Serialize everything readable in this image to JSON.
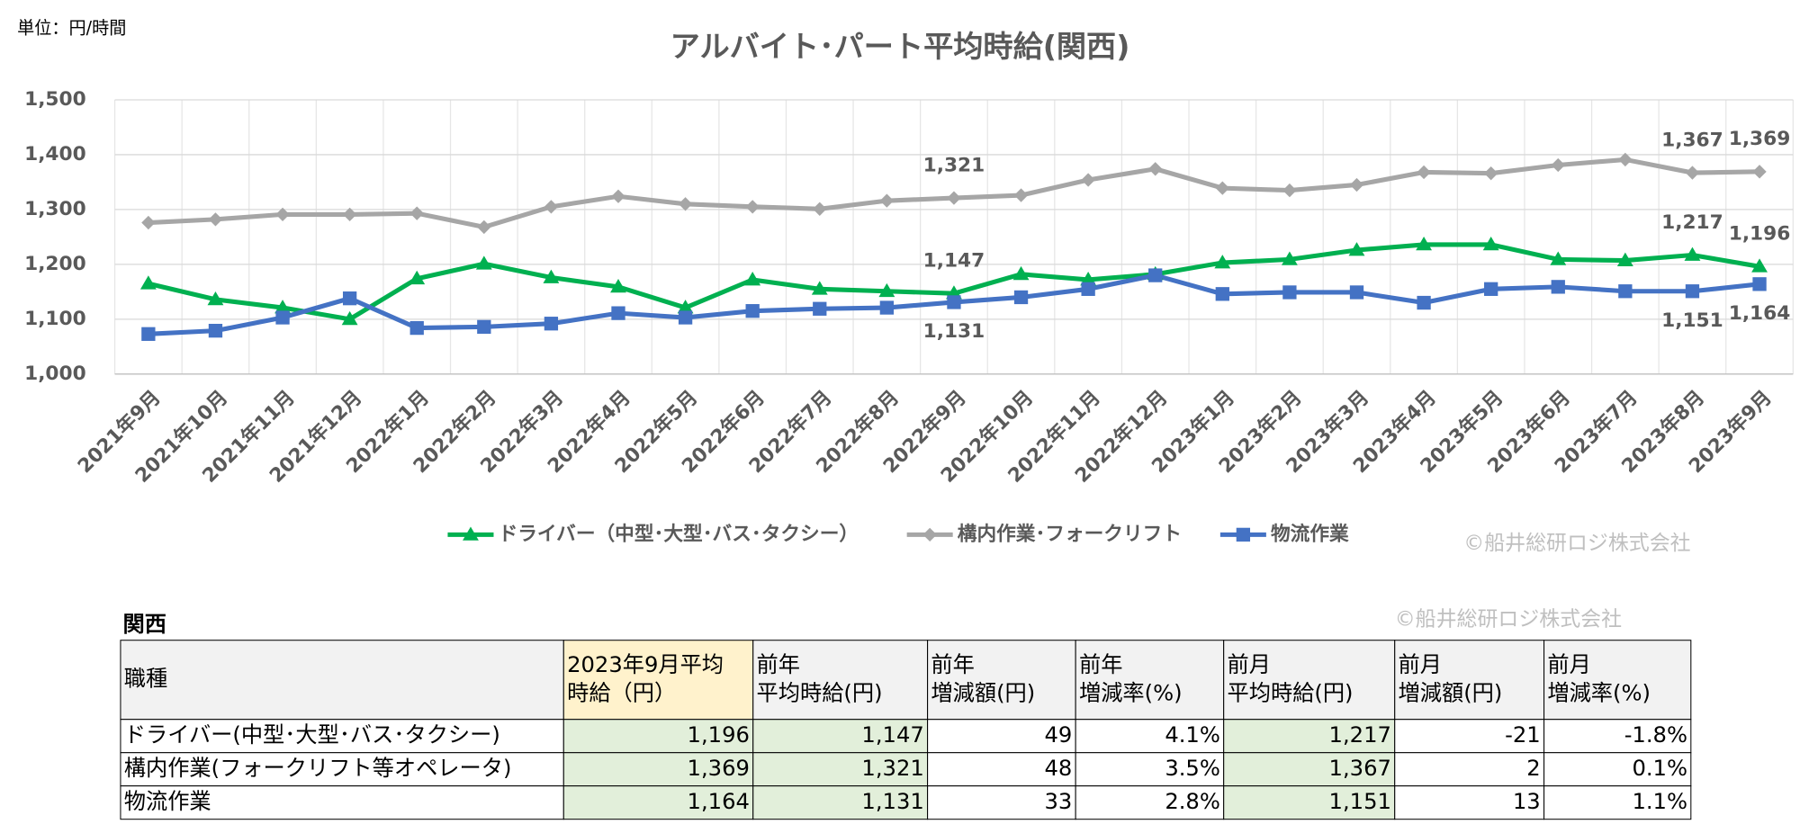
{
  "unit_note": "単位：円/時間",
  "chart_data": {
    "type": "line",
    "title": "アルバイト･パート平均時給(関西)",
    "categories": [
      "2021年9月",
      "2021年10月",
      "2021年11月",
      "2021年12月",
      "2022年1月",
      "2022年2月",
      "2022年3月",
      "2022年4月",
      "2022年5月",
      "2022年6月",
      "2022年7月",
      "2022年8月",
      "2022年9月",
      "2022年10月",
      "2022年11月",
      "2022年12月",
      "2023年1月",
      "2023年2月",
      "2023年3月",
      "2023年4月",
      "2023年5月",
      "2023年6月",
      "2023年7月",
      "2023年8月",
      "2023年9月"
    ],
    "ylim": [
      1000,
      1500
    ],
    "yticks": [
      {
        "value": 1000,
        "label": "1,000"
      },
      {
        "value": 1100,
        "label": "1,100"
      },
      {
        "value": 1200,
        "label": "1,200"
      },
      {
        "value": 1300,
        "label": "1,300"
      },
      {
        "value": 1400,
        "label": "1,400"
      },
      {
        "value": 1500,
        "label": "1,500"
      }
    ],
    "grid": true,
    "legend": "bottom",
    "series": [
      {
        "name": "ドライバー（中型･大型･バス･タクシー）",
        "color": "#00b050",
        "marker": "triangle",
        "label_position": "above",
        "values": [
          1165,
          1136,
          1121,
          1100,
          1174,
          1201,
          1176,
          1159,
          1121,
          1172,
          1155,
          1151,
          1147,
          1182,
          1172,
          1182,
          1203,
          1209,
          1226,
          1236,
          1236,
          1209,
          1207,
          1217,
          1196
        ],
        "value_labels": [
          null,
          null,
          null,
          null,
          null,
          null,
          null,
          null,
          null,
          null,
          null,
          null,
          "1,147",
          null,
          null,
          null,
          null,
          null,
          null,
          null,
          null,
          null,
          null,
          "1,217",
          "1,196"
        ]
      },
      {
        "name": "構内作業･フォークリフト",
        "color": "#a6a6a6",
        "marker": "diamond",
        "label_position": "above",
        "values": [
          1276,
          1282,
          1291,
          1291,
          1293,
          1268,
          1305,
          1324,
          1310,
          1305,
          1301,
          1316,
          1321,
          1326,
          1354,
          1374,
          1339,
          1335,
          1345,
          1368,
          1366,
          1381,
          1391,
          1367,
          1369
        ],
        "value_labels": [
          null,
          null,
          null,
          null,
          null,
          null,
          null,
          null,
          null,
          null,
          null,
          null,
          "1,321",
          null,
          null,
          null,
          null,
          null,
          null,
          null,
          null,
          null,
          null,
          "1,367",
          "1,369"
        ]
      },
      {
        "name": "物流作業",
        "color": "#4472c4",
        "marker": "square",
        "label_position": "below",
        "values": [
          1073,
          1079,
          1103,
          1138,
          1084,
          1086,
          1092,
          1111,
          1103,
          1115,
          1119,
          1121,
          1131,
          1140,
          1155,
          1180,
          1146,
          1149,
          1149,
          1130,
          1155,
          1159,
          1151,
          1151,
          1164
        ],
        "value_labels": [
          null,
          null,
          null,
          null,
          null,
          null,
          null,
          null,
          null,
          null,
          null,
          null,
          "1,131",
          null,
          null,
          null,
          null,
          null,
          null,
          null,
          null,
          null,
          null,
          "1,151",
          "1,164"
        ]
      }
    ],
    "watermark": "©船井総研ロジ株式会社"
  },
  "table": {
    "title": "関西",
    "watermark": "©船井総研ロジ株式会社",
    "header": [
      [
        "職種"
      ],
      [
        "2023年9月平均",
        "時給（円）"
      ],
      [
        "前年",
        "平均時給(円)"
      ],
      [
        "前年",
        "増減額(円)"
      ],
      [
        "前年",
        "増減率(%)"
      ],
      [
        "前月",
        "平均時給(円)"
      ],
      [
        "前月",
        "増減額(円)"
      ],
      [
        "前月",
        "増減率(%)"
      ]
    ],
    "rows": [
      [
        "ドライバー(中型･大型･バス･タクシー)",
        "1,196",
        "1,147",
        "49",
        "4.1%",
        "1,217",
        "-21",
        "-1.8%"
      ],
      [
        "構内作業(フォークリフト等オペレータ)",
        "1,369",
        "1,321",
        "48",
        "3.5%",
        "1,367",
        "2",
        "0.1%"
      ],
      [
        "物流作業",
        "1,164",
        "1,131",
        "33",
        "2.8%",
        "1,151",
        "13",
        "1.1%"
      ]
    ]
  }
}
